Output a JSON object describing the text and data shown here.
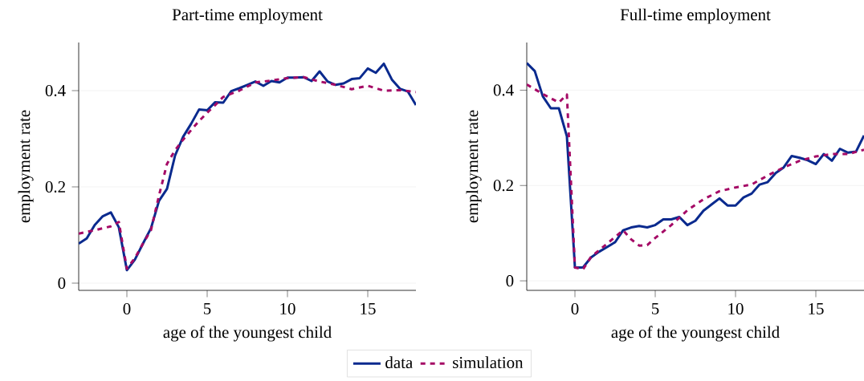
{
  "chart_data": [
    {
      "type": "line",
      "title": "Part-time employment",
      "xlabel": "age of the youngest child",
      "ylabel": "employment rate",
      "xlim": [
        -3,
        18
      ],
      "ylim": [
        -0.015,
        0.5
      ],
      "xticks": [
        0,
        5,
        10,
        15
      ],
      "yticks": [
        0,
        0.2,
        0.4
      ],
      "grid": "y",
      "legend": "bottom",
      "series": [
        {
          "name": "data",
          "color": "#0a2a8e",
          "line_style": "solid",
          "x": [
            -3,
            -2.5,
            -2,
            -1.5,
            -1,
            -0.5,
            0,
            0.5,
            1,
            1.5,
            2,
            2.5,
            3,
            3.5,
            4,
            4.5,
            5,
            5.5,
            6,
            6.5,
            7,
            7.5,
            8,
            8.5,
            9,
            9.5,
            10,
            10.5,
            11,
            11.5,
            12,
            12.5,
            13,
            13.5,
            14,
            14.5,
            15,
            15.5,
            16,
            16.5,
            17,
            17.5,
            18
          ],
          "values": [
            0.082,
            0.093,
            0.121,
            0.139,
            0.147,
            0.116,
            0.027,
            0.049,
            0.082,
            0.114,
            0.171,
            0.196,
            0.265,
            0.304,
            0.331,
            0.361,
            0.359,
            0.376,
            0.375,
            0.399,
            0.405,
            0.412,
            0.419,
            0.41,
            0.42,
            0.417,
            0.427,
            0.427,
            0.428,
            0.42,
            0.44,
            0.419,
            0.412,
            0.415,
            0.424,
            0.426,
            0.446,
            0.437,
            0.456,
            0.423,
            0.404,
            0.398,
            0.37
          ]
        },
        {
          "name": "simulation",
          "color": "#a50a66",
          "line_style": "dashed",
          "x": [
            -3,
            -2,
            -1,
            -0.5,
            0,
            0.5,
            1,
            1.5,
            2,
            2.5,
            3,
            3.5,
            4,
            4.5,
            5,
            5.5,
            6,
            7,
            8,
            9,
            10,
            11,
            12,
            13,
            14,
            15,
            16,
            17,
            18
          ],
          "values": [
            0.103,
            0.11,
            0.118,
            0.127,
            0.03,
            0.052,
            0.082,
            0.11,
            0.182,
            0.248,
            0.276,
            0.298,
            0.318,
            0.337,
            0.354,
            0.37,
            0.387,
            0.4,
            0.417,
            0.421,
            0.426,
            0.428,
            0.419,
            0.412,
            0.403,
            0.41,
            0.4,
            0.401,
            0.397
          ]
        }
      ]
    },
    {
      "type": "line",
      "title": "Full-time employment",
      "xlabel": "age of the youngest child",
      "ylabel": "employment rate",
      "xlim": [
        -3,
        18
      ],
      "ylim": [
        -0.02,
        0.5
      ],
      "xticks": [
        0,
        5,
        10,
        15
      ],
      "yticks": [
        0,
        0.2,
        0.4
      ],
      "grid": "y",
      "series": [
        {
          "color": "#0a2a8e",
          "line_style": "solid",
          "x": [
            -3,
            -2.5,
            -2,
            -1.5,
            -1,
            -0.5,
            0,
            0.5,
            1,
            1.5,
            2,
            2.5,
            3,
            3.5,
            4,
            4.5,
            5,
            5.5,
            6,
            6.5,
            7,
            7.5,
            8,
            8.5,
            9,
            9.5,
            10,
            10.5,
            11,
            11.5,
            12,
            12.5,
            13,
            13.5,
            14,
            14.5,
            15,
            15.5,
            16,
            16.5,
            17,
            17.5,
            18
          ],
          "values": [
            0.457,
            0.44,
            0.387,
            0.362,
            0.362,
            0.303,
            0.028,
            0.028,
            0.049,
            0.061,
            0.071,
            0.081,
            0.106,
            0.112,
            0.115,
            0.112,
            0.117,
            0.129,
            0.129,
            0.134,
            0.117,
            0.126,
            0.147,
            0.16,
            0.173,
            0.158,
            0.158,
            0.175,
            0.183,
            0.202,
            0.207,
            0.226,
            0.238,
            0.262,
            0.258,
            0.253,
            0.245,
            0.266,
            0.252,
            0.277,
            0.269,
            0.271,
            0.305
          ]
        },
        {
          "color": "#a50a66",
          "line_style": "dashed",
          "x": [
            -3,
            -2,
            -1,
            -0.5,
            0,
            0.5,
            1,
            2,
            3,
            3.5,
            4,
            4.5,
            5,
            6,
            7,
            8,
            9,
            10,
            11,
            12,
            13,
            14,
            15,
            16,
            17,
            18
          ],
          "values": [
            0.412,
            0.392,
            0.374,
            0.391,
            0.028,
            0.024,
            0.05,
            0.078,
            0.106,
            0.087,
            0.074,
            0.075,
            0.09,
            0.117,
            0.148,
            0.171,
            0.188,
            0.196,
            0.202,
            0.221,
            0.238,
            0.252,
            0.261,
            0.266,
            0.266,
            0.275
          ]
        }
      ]
    }
  ]
}
